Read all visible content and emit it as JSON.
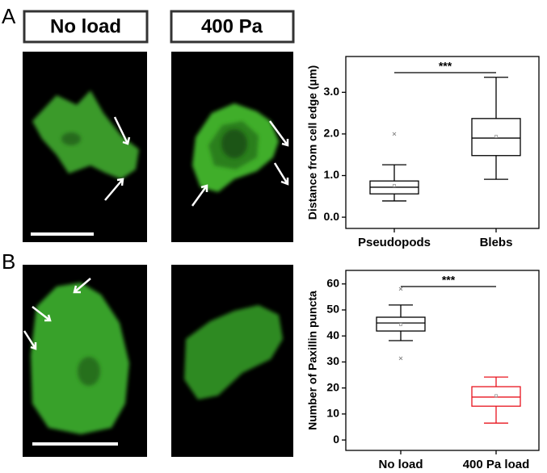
{
  "panel_labels": [
    "A",
    "B"
  ],
  "headers": [
    "No load",
    "400 Pa"
  ],
  "chart_data": [
    {
      "type": "box",
      "ylabel": "Distance from cell edge (μm)",
      "annotation": "***",
      "categories": [
        "Pseudopods",
        "Blebs"
      ],
      "colors": [
        "#000000",
        "#000000"
      ],
      "boxes": [
        {
          "whislo": 0.39,
          "q1": 0.56,
          "med": 0.72,
          "q3": 0.87,
          "whishi": 1.26,
          "mean": 0.76,
          "fliers": [
            2.0
          ]
        },
        {
          "whislo": 0.91,
          "q1": 1.48,
          "med": 1.9,
          "q3": 2.37,
          "whishi": 3.36,
          "mean": 1.94,
          "fliers": []
        }
      ],
      "ylim": [
        -0.27,
        3.86
      ],
      "yticks": [
        {
          "value": 0,
          "label": "0.0"
        },
        {
          "value": 1,
          "label": "1.0"
        },
        {
          "value": 2,
          "label": "2.0"
        },
        {
          "value": 3,
          "label": "3.0"
        }
      ]
    },
    {
      "type": "box",
      "ylabel": "Number of Paxillin puncta",
      "annotation": "***",
      "categories": [
        "No load",
        "400 Pa load"
      ],
      "colors": [
        "#000000",
        "#e8141e"
      ],
      "boxes": [
        {
          "whislo": 38.2,
          "q1": 41.9,
          "med": 45.0,
          "q3": 47.2,
          "whishi": 51.9,
          "mean": 44.4,
          "fliers": [
            58.1,
            31.4
          ]
        },
        {
          "whislo": 6.5,
          "q1": 13.0,
          "med": 16.5,
          "q3": 20.5,
          "whishi": 24.2,
          "mean": 17.0,
          "fliers": []
        }
      ],
      "ylim": [
        -4.0,
        65.2
      ],
      "yticks": [
        0,
        10,
        20,
        30,
        40,
        50,
        60
      ]
    }
  ]
}
